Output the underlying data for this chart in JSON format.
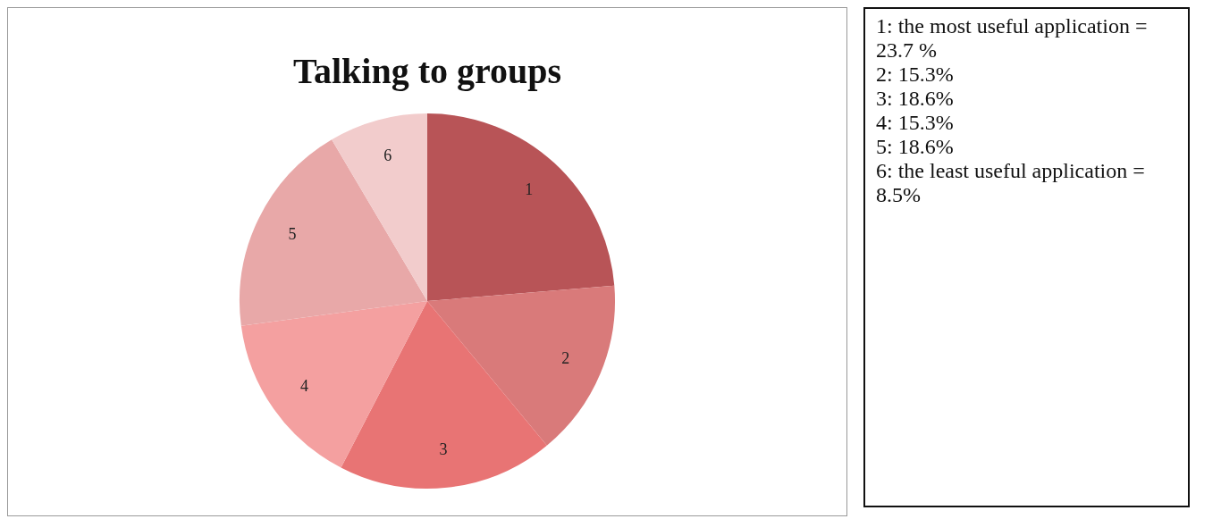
{
  "chart_data": [
    {
      "type": "pie",
      "title": "Talking to groups",
      "categories": [
        "1",
        "2",
        "3",
        "4",
        "5",
        "6"
      ],
      "values": [
        23.7,
        15.3,
        18.6,
        15.3,
        18.6,
        8.5
      ],
      "colors": [
        "#b85457",
        "#d97a7a",
        "#e87474",
        "#f4a0a0",
        "#e8a8a8",
        "#f2cccc"
      ],
      "legend": false
    },
    {
      "type": "other",
      "annotations": [
        "1: the most useful application = 23.7 %",
        "2: 15.3%",
        "3: 18.6%",
        "4: 15.3%",
        "5: 18.6%",
        "6: the least useful application = 8.5%"
      ]
    }
  ]
}
